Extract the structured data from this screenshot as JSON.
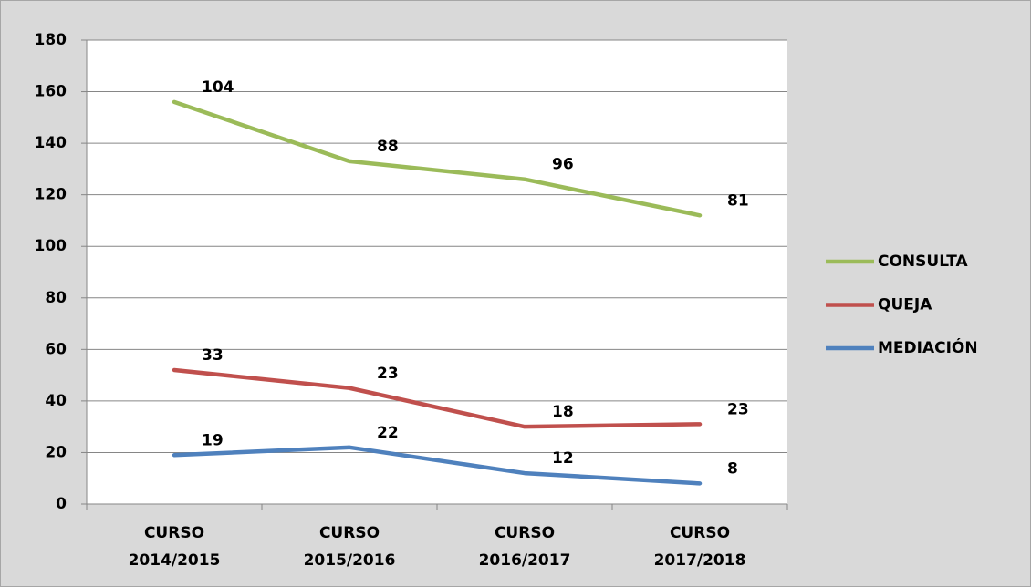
{
  "chart_data": {
    "type": "line",
    "stacked": true,
    "categories": [
      "CURSO 2014/2015",
      "CURSO 2015/2016",
      "CURSO 2016/2017",
      "CURSO 2017/2018"
    ],
    "series": [
      {
        "name": "CONSULTA",
        "color": "#9bbb59",
        "values": [
          104,
          88,
          96,
          81
        ]
      },
      {
        "name": "QUEJA",
        "color": "#c0504d",
        "values": [
          33,
          23,
          18,
          23
        ]
      },
      {
        "name": "MEDIACIÓN",
        "color": "#4f81bd",
        "values": [
          19,
          22,
          12,
          8
        ]
      }
    ],
    "ylim": [
      0,
      180
    ],
    "yticks": [
      0,
      20,
      40,
      60,
      80,
      100,
      120,
      140,
      160,
      180
    ],
    "grid": true,
    "legend": "right"
  }
}
